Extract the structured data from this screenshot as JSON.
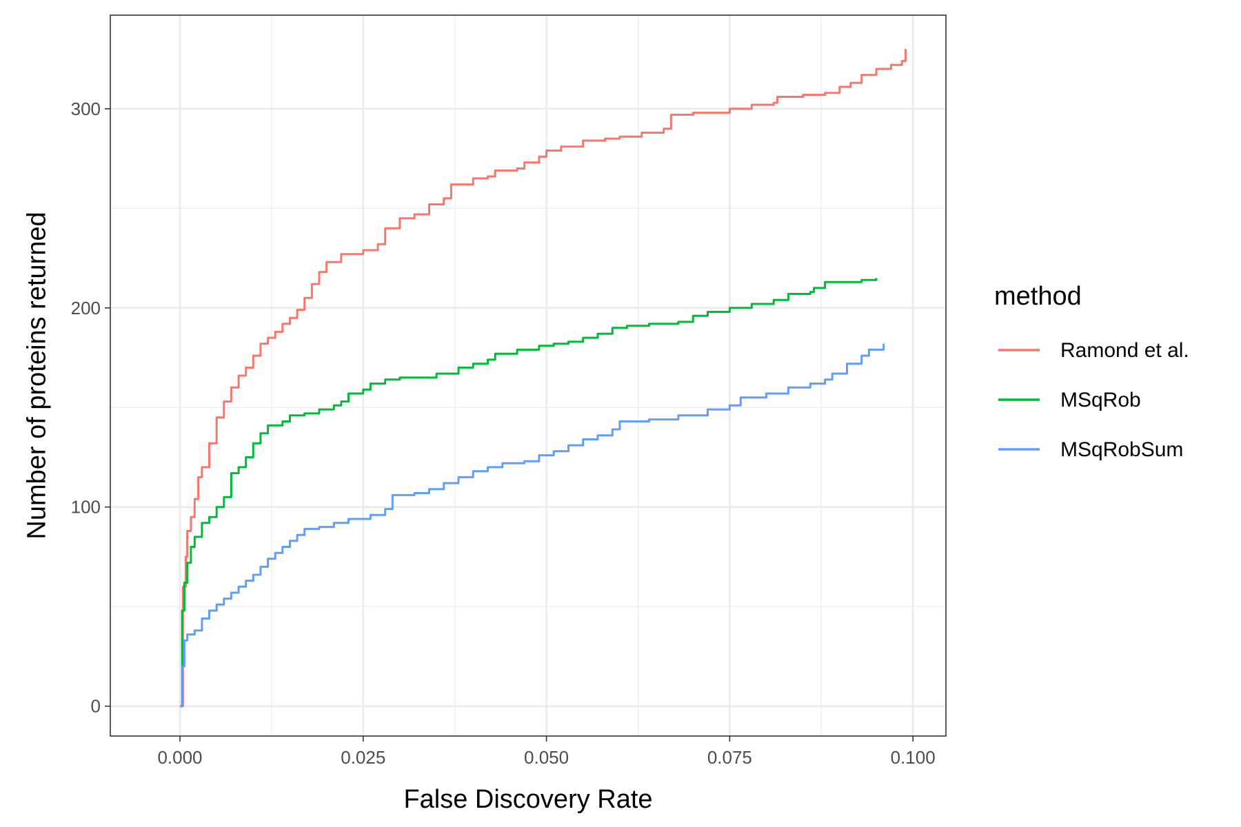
{
  "chart_data": {
    "type": "line",
    "title": "",
    "xlabel": "False Discovery Rate",
    "ylabel": "Number of proteins returned",
    "xlim": [
      -0.0095,
      0.1045
    ],
    "ylim": [
      -15,
      347
    ],
    "x_ticks": [
      0,
      0.025,
      0.05,
      0.075,
      0.1
    ],
    "x_tick_labels": [
      "0.000",
      "0.025",
      "0.050",
      "0.075",
      "0.100"
    ],
    "y_ticks": [
      0,
      100,
      200,
      300
    ],
    "y_tick_labels": [
      "0",
      "100",
      "200",
      "300"
    ],
    "grid": true,
    "legend": {
      "title": "method",
      "position": "right"
    },
    "series": [
      {
        "name": "Ramond et al.",
        "color": "#F8766D",
        "points": [
          [
            0,
            0
          ],
          [
            0.0004,
            60
          ],
          [
            0.0008,
            75
          ],
          [
            0.001,
            88
          ],
          [
            0.0015,
            95
          ],
          [
            0.002,
            104
          ],
          [
            0.0025,
            115
          ],
          [
            0.003,
            120
          ],
          [
            0.004,
            132
          ],
          [
            0.005,
            145
          ],
          [
            0.006,
            153
          ],
          [
            0.007,
            160
          ],
          [
            0.008,
            166
          ],
          [
            0.009,
            170
          ],
          [
            0.01,
            176
          ],
          [
            0.011,
            182
          ],
          [
            0.012,
            185
          ],
          [
            0.013,
            188
          ],
          [
            0.014,
            192
          ],
          [
            0.015,
            195
          ],
          [
            0.016,
            199
          ],
          [
            0.017,
            205
          ],
          [
            0.018,
            212
          ],
          [
            0.019,
            218
          ],
          [
            0.02,
            223
          ],
          [
            0.022,
            227
          ],
          [
            0.025,
            229
          ],
          [
            0.027,
            232
          ],
          [
            0.028,
            240
          ],
          [
            0.03,
            245
          ],
          [
            0.032,
            247
          ],
          [
            0.034,
            252
          ],
          [
            0.036,
            255
          ],
          [
            0.037,
            262
          ],
          [
            0.04,
            265
          ],
          [
            0.042,
            266
          ],
          [
            0.043,
            269
          ],
          [
            0.046,
            270
          ],
          [
            0.047,
            273
          ],
          [
            0.049,
            276
          ],
          [
            0.05,
            279
          ],
          [
            0.052,
            281
          ],
          [
            0.055,
            284
          ],
          [
            0.058,
            285
          ],
          [
            0.06,
            286
          ],
          [
            0.063,
            288
          ],
          [
            0.066,
            290
          ],
          [
            0.067,
            297
          ],
          [
            0.07,
            298
          ],
          [
            0.075,
            300
          ],
          [
            0.078,
            302
          ],
          [
            0.081,
            303
          ],
          [
            0.0815,
            306
          ],
          [
            0.085,
            307
          ],
          [
            0.088,
            308
          ],
          [
            0.09,
            311
          ],
          [
            0.0915,
            313
          ],
          [
            0.093,
            317
          ],
          [
            0.095,
            320
          ],
          [
            0.097,
            322
          ],
          [
            0.0985,
            324
          ],
          [
            0.099,
            330
          ]
        ]
      },
      {
        "name": "MSqRob",
        "color": "#00BA38",
        "points": [
          [
            0,
            0
          ],
          [
            0.0003,
            48
          ],
          [
            0.0006,
            62
          ],
          [
            0.001,
            72
          ],
          [
            0.0015,
            80
          ],
          [
            0.002,
            85
          ],
          [
            0.003,
            92
          ],
          [
            0.004,
            95
          ],
          [
            0.005,
            100
          ],
          [
            0.006,
            105
          ],
          [
            0.007,
            117
          ],
          [
            0.008,
            120
          ],
          [
            0.009,
            125
          ],
          [
            0.01,
            132
          ],
          [
            0.011,
            137
          ],
          [
            0.012,
            141
          ],
          [
            0.014,
            143
          ],
          [
            0.015,
            146
          ],
          [
            0.017,
            147
          ],
          [
            0.019,
            149
          ],
          [
            0.021,
            151
          ],
          [
            0.022,
            153
          ],
          [
            0.023,
            157
          ],
          [
            0.025,
            159
          ],
          [
            0.026,
            162
          ],
          [
            0.028,
            164
          ],
          [
            0.03,
            165
          ],
          [
            0.035,
            167
          ],
          [
            0.038,
            170
          ],
          [
            0.04,
            172
          ],
          [
            0.042,
            174
          ],
          [
            0.043,
            177
          ],
          [
            0.046,
            179
          ],
          [
            0.049,
            181
          ],
          [
            0.051,
            182
          ],
          [
            0.053,
            183
          ],
          [
            0.055,
            185
          ],
          [
            0.057,
            187
          ],
          [
            0.059,
            190
          ],
          [
            0.061,
            191
          ],
          [
            0.064,
            192
          ],
          [
            0.068,
            193
          ],
          [
            0.07,
            196
          ],
          [
            0.072,
            198
          ],
          [
            0.075,
            200
          ],
          [
            0.078,
            202
          ],
          [
            0.081,
            204
          ],
          [
            0.083,
            207
          ],
          [
            0.086,
            208
          ],
          [
            0.0865,
            210
          ],
          [
            0.088,
            213
          ],
          [
            0.09,
            213
          ],
          [
            0.093,
            214
          ],
          [
            0.095,
            215
          ]
        ]
      },
      {
        "name": "MSqRobSum",
        "color": "#619CFF",
        "points": [
          [
            0,
            0
          ],
          [
            0.0003,
            20
          ],
          [
            0.0006,
            33
          ],
          [
            0.001,
            36
          ],
          [
            0.002,
            38
          ],
          [
            0.003,
            44
          ],
          [
            0.004,
            48
          ],
          [
            0.005,
            51
          ],
          [
            0.006,
            54
          ],
          [
            0.007,
            57
          ],
          [
            0.008,
            60
          ],
          [
            0.009,
            63
          ],
          [
            0.01,
            66
          ],
          [
            0.011,
            70
          ],
          [
            0.012,
            74
          ],
          [
            0.013,
            77
          ],
          [
            0.014,
            80
          ],
          [
            0.015,
            83
          ],
          [
            0.016,
            86
          ],
          [
            0.017,
            89
          ],
          [
            0.019,
            90
          ],
          [
            0.021,
            92
          ],
          [
            0.023,
            94
          ],
          [
            0.026,
            96
          ],
          [
            0.028,
            99
          ],
          [
            0.029,
            106
          ],
          [
            0.032,
            107
          ],
          [
            0.034,
            109
          ],
          [
            0.036,
            112
          ],
          [
            0.038,
            115
          ],
          [
            0.04,
            118
          ],
          [
            0.042,
            120
          ],
          [
            0.044,
            122
          ],
          [
            0.047,
            123
          ],
          [
            0.049,
            126
          ],
          [
            0.051,
            128
          ],
          [
            0.053,
            131
          ],
          [
            0.055,
            134
          ],
          [
            0.057,
            136
          ],
          [
            0.059,
            139
          ],
          [
            0.06,
            143
          ],
          [
            0.064,
            144
          ],
          [
            0.068,
            146
          ],
          [
            0.072,
            149
          ],
          [
            0.075,
            151
          ],
          [
            0.0765,
            155
          ],
          [
            0.08,
            157
          ],
          [
            0.083,
            160
          ],
          [
            0.086,
            162
          ],
          [
            0.088,
            164
          ],
          [
            0.089,
            167
          ],
          [
            0.091,
            172
          ],
          [
            0.093,
            176
          ],
          [
            0.094,
            179
          ],
          [
            0.096,
            182
          ]
        ]
      }
    ]
  }
}
